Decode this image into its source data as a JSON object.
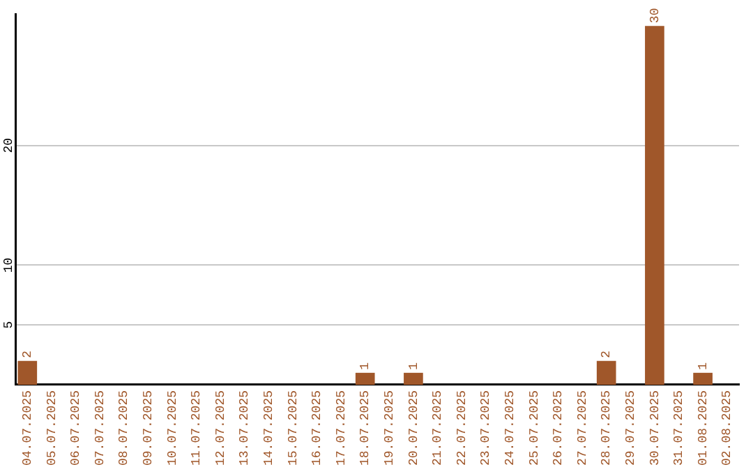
{
  "chart_data": {
    "type": "bar",
    "categories": [
      "04.07.2025",
      "05.07.2025",
      "06.07.2025",
      "07.07.2025",
      "08.07.2025",
      "09.07.2025",
      "10.07.2025",
      "11.07.2025",
      "12.07.2025",
      "13.07.2025",
      "14.07.2025",
      "15.07.2025",
      "16.07.2025",
      "17.07.2025",
      "18.07.2025",
      "19.07.2025",
      "20.07.2025",
      "21.07.2025",
      "22.07.2025",
      "23.07.2025",
      "24.07.2025",
      "25.07.2025",
      "26.07.2025",
      "27.07.2025",
      "28.07.2025",
      "29.07.2025",
      "30.07.2025",
      "31.07.2025",
      "01.08.2025",
      "02.08.2025"
    ],
    "values": [
      2,
      0,
      0,
      0,
      0,
      0,
      0,
      0,
      0,
      0,
      0,
      0,
      0,
      0,
      1,
      0,
      1,
      0,
      0,
      0,
      0,
      0,
      0,
      0,
      2,
      0,
      30,
      0,
      1,
      0
    ],
    "value_labels": [
      "2",
      null,
      null,
      null,
      null,
      null,
      null,
      null,
      null,
      null,
      null,
      null,
      null,
      null,
      "1",
      null,
      "1",
      null,
      null,
      null,
      null,
      null,
      null,
      null,
      "2",
      null,
      "30",
      null,
      "1",
      null
    ],
    "color": "#a0572a",
    "ylim": [
      0,
      31
    ],
    "yticks": [
      5,
      10,
      20
    ],
    "grid": "y"
  }
}
